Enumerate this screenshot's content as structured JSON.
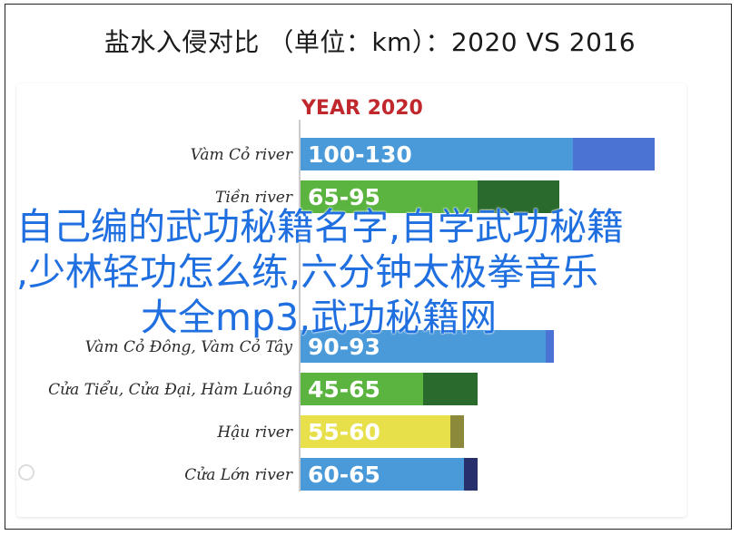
{
  "page": {
    "title": "盐水入侵对比 （单位：km）：2020 VS 2016"
  },
  "overlay": {
    "line1": "自己编的武功秘籍名字,自学武功秘籍",
    "line2": ",少林轻功怎么练,六分钟太极拳音乐",
    "line3": "大全mp3,武功秘籍网"
  },
  "chart_data": {
    "type": "bar",
    "orientation": "horizontal",
    "groups": [
      {
        "title": "YEAR 2020",
        "title_color": "#c0282d",
        "bars": [
          {
            "category": "Vàm Cỏ river",
            "label": "100-130",
            "min": 100,
            "max": 130,
            "color_base": "#4a9ad9",
            "color_ext": "#4b73d4"
          },
          {
            "category": "Tiền river",
            "label": "65-95",
            "min": 65,
            "max": 95,
            "color_base": "#5ab43f",
            "color_ext": "#2a6a2c"
          }
        ]
      },
      {
        "title": "",
        "title_color": "#c0282d",
        "bars": [
          {
            "category": "Vàm Cỏ Đông, Vàm Cỏ Tây",
            "label": "90-93",
            "min": 90,
            "max": 93,
            "color_base": "#4a9ad9",
            "color_ext": "#4b73d4"
          },
          {
            "category": "Cửa Tiểu, Cửa Đại, Hàm Luông",
            "label": "45-65",
            "min": 45,
            "max": 65,
            "color_base": "#5ab43f",
            "color_ext": "#2a6a2c"
          },
          {
            "category": "Hậu river",
            "label": "55-60",
            "min": 55,
            "max": 60,
            "color_base": "#e7e04a",
            "color_ext": "#8c8a3a"
          },
          {
            "category": "Cửa Lớn river",
            "label": "60-65",
            "min": 60,
            "max": 65,
            "color_base": "#4a9ad9",
            "color_ext": "#27306a"
          }
        ]
      }
    ],
    "value_range": [
      0,
      140
    ]
  }
}
